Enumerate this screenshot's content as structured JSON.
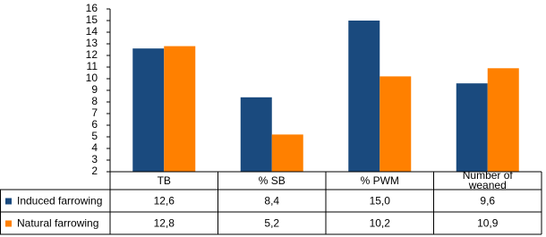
{
  "chart_data": {
    "type": "bar",
    "categories": [
      "TB",
      "% SB",
      "% PWM",
      "Number of weaned"
    ],
    "series": [
      {
        "name": "Induced farrowing",
        "color": "#1a4a7e",
        "values": [
          12.6,
          8.4,
          15.0,
          9.6
        ],
        "value_labels": [
          "12,6",
          "8,4",
          "15,0",
          "9,6"
        ]
      },
      {
        "name": "Natural farrowing",
        "color": "#ff8000",
        "values": [
          12.8,
          5.2,
          10.2,
          10.9
        ],
        "value_labels": [
          "12,8",
          "5,2",
          "10,2",
          "10,9"
        ]
      }
    ],
    "ylim": [
      2,
      16
    ],
    "yticks": [
      2,
      3,
      4,
      5,
      6,
      7,
      8,
      9,
      10,
      11,
      12,
      13,
      14,
      15,
      16
    ],
    "grid": false
  }
}
